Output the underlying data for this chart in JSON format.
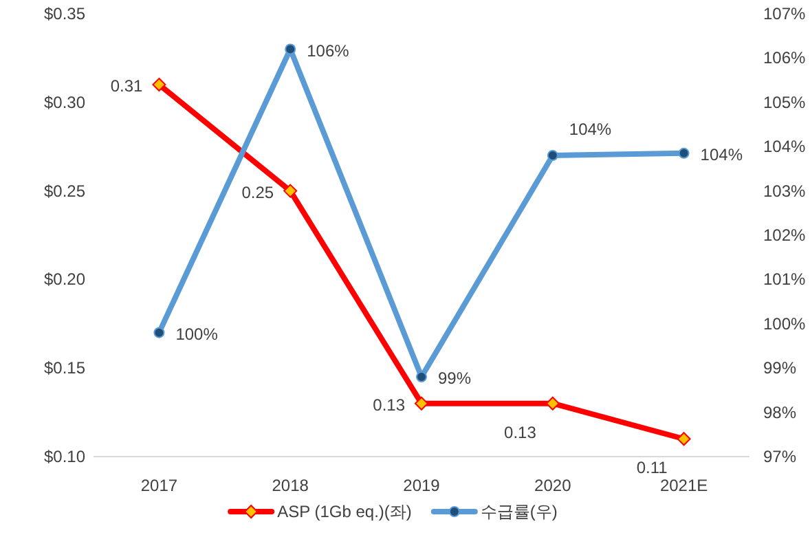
{
  "chart_data": {
    "type": "line",
    "categories": [
      "2017",
      "2018",
      "2019",
      "2020",
      "2021E"
    ],
    "series": [
      {
        "name": "ASP (1Gb eq.)(좌)",
        "color": "#ff0000",
        "marker": "diamond",
        "values": [
          0.31,
          0.25,
          0.13,
          0.13,
          0.11
        ],
        "value_labels": [
          "0.31",
          "0.25",
          "0.13",
          "0.13",
          "0.11"
        ]
      },
      {
        "name": "수급률(우)",
        "color": "#5b9bd5",
        "marker": "circle",
        "axis": "y2",
        "values": [
          99.8,
          106.2,
          98.8,
          103.8,
          103.85
        ],
        "value_labels": [
          "100%",
          "106%",
          "99%",
          "104%",
          "104%"
        ]
      }
    ],
    "ylim": [
      0.1,
      0.35
    ],
    "yticks": [
      {
        "value": 0.1,
        "label": "$0.10"
      },
      {
        "value": 0.15,
        "label": "$0.15"
      },
      {
        "value": 0.2,
        "label": "$0.20"
      },
      {
        "value": 0.25,
        "label": "$0.25"
      },
      {
        "value": 0.3,
        "label": "$0.30"
      },
      {
        "value": 0.35,
        "label": "$0.35"
      }
    ],
    "y2lim": [
      97,
      107
    ],
    "y2ticks": [
      {
        "value": 97,
        "label": "97%"
      },
      {
        "value": 98,
        "label": "98%"
      },
      {
        "value": 99,
        "label": "99%"
      },
      {
        "value": 100,
        "label": "100%"
      },
      {
        "value": 101,
        "label": "101%"
      },
      {
        "value": 102,
        "label": "102%"
      },
      {
        "value": 103,
        "label": "103%"
      },
      {
        "value": 104,
        "label": "104%"
      },
      {
        "value": 105,
        "label": "105%"
      },
      {
        "value": 106,
        "label": "106%"
      },
      {
        "value": 107,
        "label": "107%"
      }
    ],
    "legend": "bottom"
  }
}
